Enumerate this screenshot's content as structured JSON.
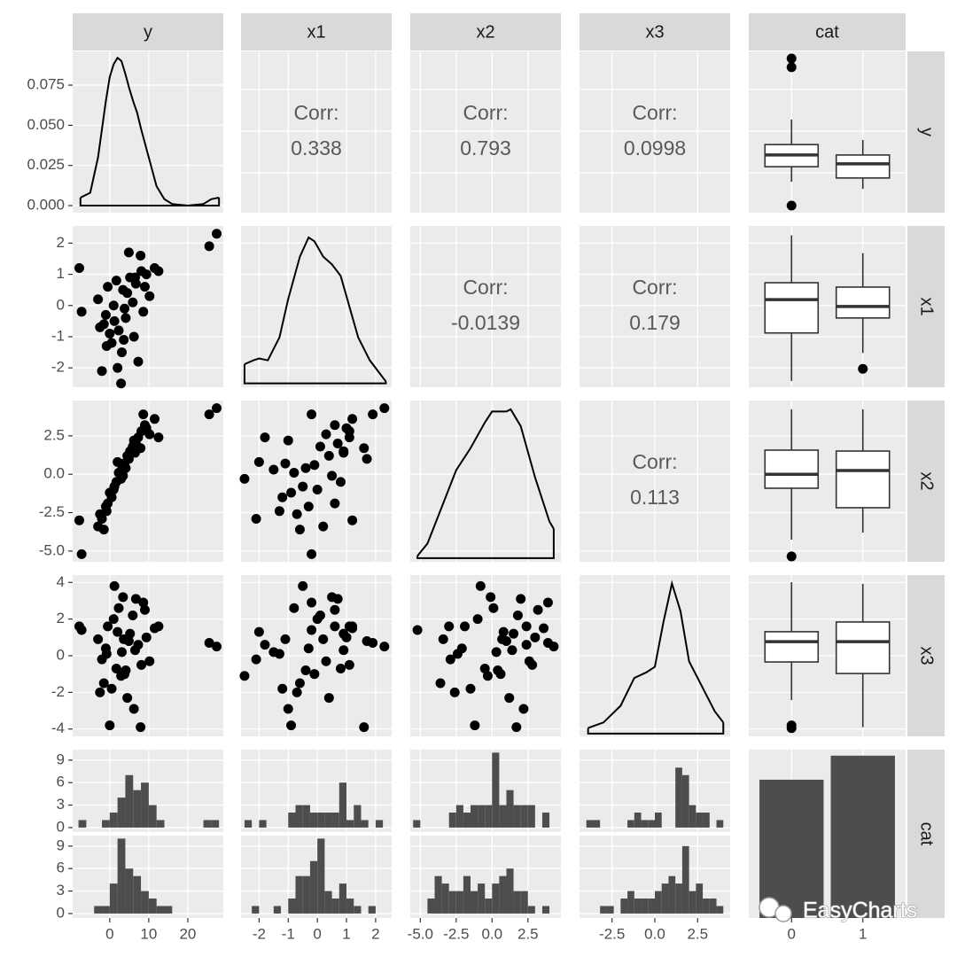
{
  "chart_data": {
    "type": "pairs",
    "variables": [
      {
        "name": "y",
        "lim": [
          -9.5,
          29.1
        ],
        "xticks": [
          0,
          10,
          20
        ]
      },
      {
        "name": "x1",
        "lim": [
          -2.62,
          2.55
        ],
        "xticks": [
          -2,
          -1,
          0,
          1,
          2
        ]
      },
      {
        "name": "x2",
        "lim": [
          -5.7,
          4.8
        ],
        "xticks": [
          {
            "value": -5,
            "label": "-5.0"
          },
          -2.5,
          {
            "value": 0,
            "label": "0.0"
          },
          2.5
        ]
      },
      {
        "name": "x3",
        "lim": [
          -4.4,
          4.4
        ],
        "xticks": [
          -2.5,
          {
            "value": 0,
            "label": "0.0"
          },
          2.5
        ],
        "yticks": [
          -4,
          -2,
          0,
          2,
          4
        ]
      },
      {
        "name": "cat",
        "categories": [
          "0",
          "1"
        ]
      }
    ],
    "observations": [
      [
        5.2,
        -1.0,
        8.1,
        2.3,
        0.5,
        11.5,
        -3.0,
        6.7,
        3.8,
        -2.0,
        9.4,
        1.2,
        4.5,
        7.3,
        -0.5,
        2.9,
        12.5,
        0.0,
        5.9,
        -7.8,
        3.1,
        1.7,
        8.6,
        -1.5,
        4.9,
        6.2,
        27.4,
        25.5,
        -7.2,
        2.0,
        10.2,
        3.4,
        -0.8,
        7.9,
        1.0,
        4.1,
        6.5,
        -2.5,
        9.0,
        3.6
      ],
      [
        0.9,
        -0.3,
        1.1,
        -0.8,
        -1.2,
        1.2,
        0.2,
        0.7,
        -0.1,
        -2.1,
        1.0,
        -0.5,
        0.4,
        -1.8,
        0.6,
        -2.5,
        1.1,
        -0.9,
        0.1,
        1.2,
        -1.5,
        0.8,
        -0.2,
        -0.6,
        1.7,
        -1.0,
        2.3,
        1.9,
        -0.2,
        -2.0,
        0.3,
        0.5,
        -1.3,
        1.6,
        0.0,
        -0.4,
        0.9,
        -0.7,
        0.6,
        -1.1
      ],
      [
        1.5,
        -2.1,
        2.8,
        0.1,
        -1.5,
        3.6,
        -3.4,
        2.0,
        0.6,
        -2.9,
        3.0,
        -0.8,
        1.2,
        2.4,
        -1.9,
        -0.3,
        2.4,
        -1.2,
        1.8,
        -3.0,
        0.3,
        -0.5,
        3.9,
        -3.6,
        1.0,
        2.2,
        4.3,
        3.9,
        -5.2,
        0.8,
        2.6,
        -0.1,
        -2.4,
        1.7,
        -1.0,
        0.4,
        1.4,
        -2.6,
        3.2,
        0.7
      ],
      [
        1.2,
        0.4,
        -0.5,
        2.6,
        -1.8,
        1.5,
        0.9,
        3.1,
        -1.0,
        -0.2,
        1.0,
        3.8,
        -2.3,
        0.6,
        1.6,
        -1.1,
        1.6,
        -3.8,
        2.2,
        1.6,
        0.2,
        -0.7,
        2.9,
        -1.5,
        0.8,
        -2.9,
        0.5,
        0.7,
        1.4,
        1.3,
        -0.3,
        3.2,
        0.1,
        -3.9,
        2.0,
        -0.8,
        0.3,
        -2.0,
        2.5,
        0.9
      ]
    ],
    "corr_label": "Corr:",
    "correlations": [
      0.338,
      0.793,
      0.0998,
      -0.0139,
      0.179,
      0.113
    ],
    "densities": [
      {
        "x": [
          -7.5,
          -5,
          -3,
          -1,
          0,
          1,
          2,
          3,
          4,
          5,
          6,
          7,
          8,
          10,
          12,
          14,
          16,
          20,
          24,
          26,
          28
        ],
        "values": [
          0.005,
          0.008,
          0.03,
          0.065,
          0.08,
          0.088,
          0.092,
          0.09,
          0.082,
          0.073,
          0.065,
          0.058,
          0.048,
          0.03,
          0.012,
          0.004,
          0.001,
          0.0,
          0.001,
          0.004,
          0.005
        ],
        "ylim": [
          -0.0044,
          0.096
        ],
        "yticks": [
          {
            "value": 0,
            "label": "0.000"
          },
          {
            "value": 0.025,
            "label": "0.025"
          },
          {
            "value": 0.05,
            "label": "0.050"
          },
          0.075
        ]
      },
      {
        "x": [
          -2.5,
          -2.2,
          -2.0,
          -1.7,
          -1.3,
          -1.0,
          -0.6,
          -0.3,
          -0.1,
          0.2,
          0.5,
          0.8,
          1.1,
          1.4,
          1.8,
          2.1,
          2.35
        ],
        "values": [
          0.05,
          0.06,
          0.065,
          0.06,
          0.12,
          0.22,
          0.33,
          0.38,
          0.37,
          0.33,
          0.31,
          0.28,
          0.2,
          0.12,
          0.06,
          0.03,
          0.005
        ],
        "ylim": [
          -0.01,
          0.41
        ]
      },
      {
        "x": [
          -5.2,
          -4.5,
          -3.5,
          -2.5,
          -1.5,
          -0.5,
          0,
          0.5,
          1,
          1.3,
          2,
          3,
          4,
          4.3
        ],
        "values": [
          0.003,
          0.02,
          0.07,
          0.12,
          0.15,
          0.185,
          0.2,
          0.2,
          0.2,
          0.203,
          0.18,
          0.11,
          0.05,
          0.04
        ],
        "ylim": [
          -0.005,
          0.215
        ]
      },
      {
        "x": [
          -3.9,
          -3,
          -2,
          -1.2,
          -0.5,
          0,
          0.5,
          1,
          1.5,
          2,
          2.5,
          3,
          3.5,
          4
        ],
        "values": [
          0.01,
          0.02,
          0.05,
          0.1,
          0.11,
          0.12,
          0.2,
          0.27,
          0.22,
          0.13,
          0.1,
          0.07,
          0.04,
          0.02
        ],
        "ylim": [
          -0.005,
          0.285
        ]
      }
    ],
    "boxplots": [
      [
        {
          "box": [
            -2.1,
            1.5,
            4.3,
            6.8,
            12.8
          ],
          "outliers": [
            27.4,
            25.3,
            -7.8
          ]
        },
        {
          "box": [
            -3.8,
            -1.2,
            2.2,
            4.3,
            7.9
          ],
          "outliers": []
        }
      ],
      [
        {
          "box": [
            -2.42,
            -0.88,
            0.19,
            0.73,
            2.25
          ],
          "outliers": []
        },
        {
          "box": [
            -1.52,
            -0.4,
            -0.03,
            0.59,
            1.68
          ],
          "outliers": [
            -2.03
          ]
        }
      ],
      [
        {
          "box": [
            -4.26,
            -0.91,
            0.0,
            1.57,
            4.23
          ],
          "outliers": [
            -5.35
          ]
        },
        {
          "box": [
            -3.8,
            -2.18,
            0.24,
            1.51,
            4.23
          ],
          "outliers": []
        }
      ],
      [
        {
          "box": [
            -2.42,
            -0.34,
            0.77,
            1.31,
            4.01
          ],
          "outliers": [
            -3.8,
            -3.95
          ]
        },
        {
          "box": [
            -3.9,
            -0.97,
            0.77,
            1.84,
            3.92
          ],
          "outliers": []
        }
      ]
    ],
    "histogram_axis": {
      "ylim": [
        -0.6,
        10.4
      ],
      "yticks": [
        0,
        3,
        6,
        9
      ]
    },
    "histograms": [
      {
        "bins": [
          -8,
          -6,
          -4,
          -2,
          0,
          2,
          4,
          6,
          8,
          10,
          12,
          14,
          16,
          18,
          20,
          22,
          24,
          26,
          28
        ],
        "series": [
          {
            "values": [
              1,
              0,
              0,
              1,
              2,
              4,
              7,
              5,
              6,
              3,
              1,
              0,
              0,
              0,
              0,
              0,
              1,
              1
            ]
          },
          {
            "values": [
              0,
              0,
              1,
              1,
              4,
              10,
              6,
              5,
              3,
              2,
              1,
              1,
              0,
              0,
              0,
              0,
              0,
              0
            ]
          }
        ]
      },
      {
        "bins": [
          -2.5,
          -2.25,
          -2,
          -1.75,
          -1.5,
          -1.25,
          -1,
          -0.75,
          -0.5,
          -0.25,
          0,
          0.25,
          0.5,
          0.75,
          1,
          1.25,
          1.5,
          1.75,
          2,
          2.25,
          2.5
        ],
        "series": [
          {
            "values": [
              1,
              0,
              1,
              0,
              0,
              0,
              2,
              3,
              3,
              2,
              2,
              2,
              2,
              6,
              1,
              3,
              1,
              0,
              1,
              0
            ]
          },
          {
            "values": [
              0,
              1,
              0,
              0,
              1,
              0,
              2,
              5,
              5,
              7,
              10,
              3,
              2,
              4,
              2,
              1,
              0,
              1,
              0,
              0
            ]
          }
        ]
      },
      {
        "bins": [
          -5.5,
          -5,
          -4.5,
          -4,
          -3.5,
          -3,
          -2.5,
          -2,
          -1.5,
          -1,
          -0.5,
          0,
          0.5,
          1,
          1.5,
          2,
          2.5,
          3,
          3.5,
          4,
          4.5
        ],
        "series": [
          {
            "values": [
              1,
              0,
              0,
              0,
              0,
              2,
              3,
              2,
              3,
              3,
              3,
              10,
              3,
              5,
              3,
              3,
              3,
              0,
              2,
              0
            ]
          },
          {
            "values": [
              0,
              0,
              2,
              5,
              4,
              3,
              3,
              5,
              3,
              4,
              2,
              4,
              5,
              6,
              3,
              3,
              1,
              0,
              1,
              0
            ]
          }
        ]
      },
      {
        "bins": [
          -4,
          -3.6,
          -3.2,
          -2.8,
          -2.4,
          -2,
          -1.6,
          -1.2,
          -0.8,
          -0.4,
          0,
          0.4,
          0.8,
          1.2,
          1.6,
          2,
          2.4,
          2.8,
          3.2,
          3.6,
          4
        ],
        "series": [
          {
            "values": [
              1,
              1,
              0,
              0,
              0,
              0,
              1,
              2,
              1,
              1,
              2,
              0,
              0,
              8,
              7,
              3,
              2,
              2,
              0,
              1
            ]
          },
          {
            "values": [
              0,
              0,
              1,
              1,
              0,
              2,
              3,
              2,
              2,
              2,
              3,
              4,
              5,
              4,
              9,
              3,
              4,
              2,
              2,
              1
            ]
          }
        ]
      }
    ],
    "bar": {
      "values": [
        46,
        54
      ],
      "ylim": [
        0,
        56
      ]
    },
    "watermark": "EasyCharts"
  }
}
